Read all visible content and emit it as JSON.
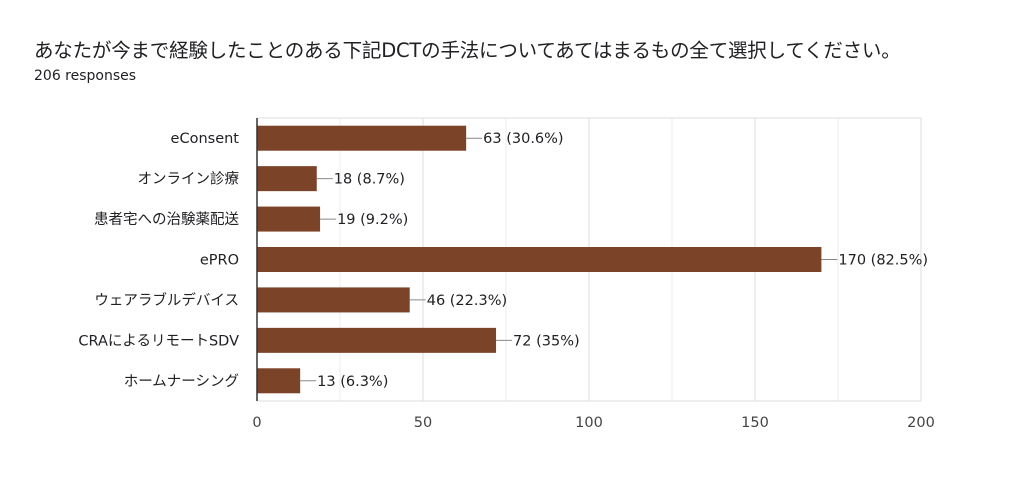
{
  "header": {
    "title": "あなたが今まで経験したことのある下記DCTの手法についてあてはまるもの全て選択してください。",
    "responses": "206 responses"
  },
  "chart_data": {
    "type": "bar",
    "orientation": "horizontal",
    "categories": [
      "eConsent",
      "オンライン診療",
      "患者宅への治験薬配送",
      "ePRO",
      "ウェアラブルデバイス",
      "CRAによるリモートSDV",
      "ホームナーシング"
    ],
    "values": [
      63,
      18,
      19,
      170,
      46,
      72,
      13
    ],
    "data_labels": [
      "63 (30.6%)",
      "18 (8.7%)",
      "19 (9.2%)",
      "170 (82.5%)",
      "46 (22.3%)",
      "72 (35%)",
      "13 (6.3%)"
    ],
    "xlim": [
      0,
      200
    ],
    "xticks": [
      0,
      50,
      100,
      150,
      200
    ],
    "grid": true,
    "bar_color": "#7b4327"
  }
}
